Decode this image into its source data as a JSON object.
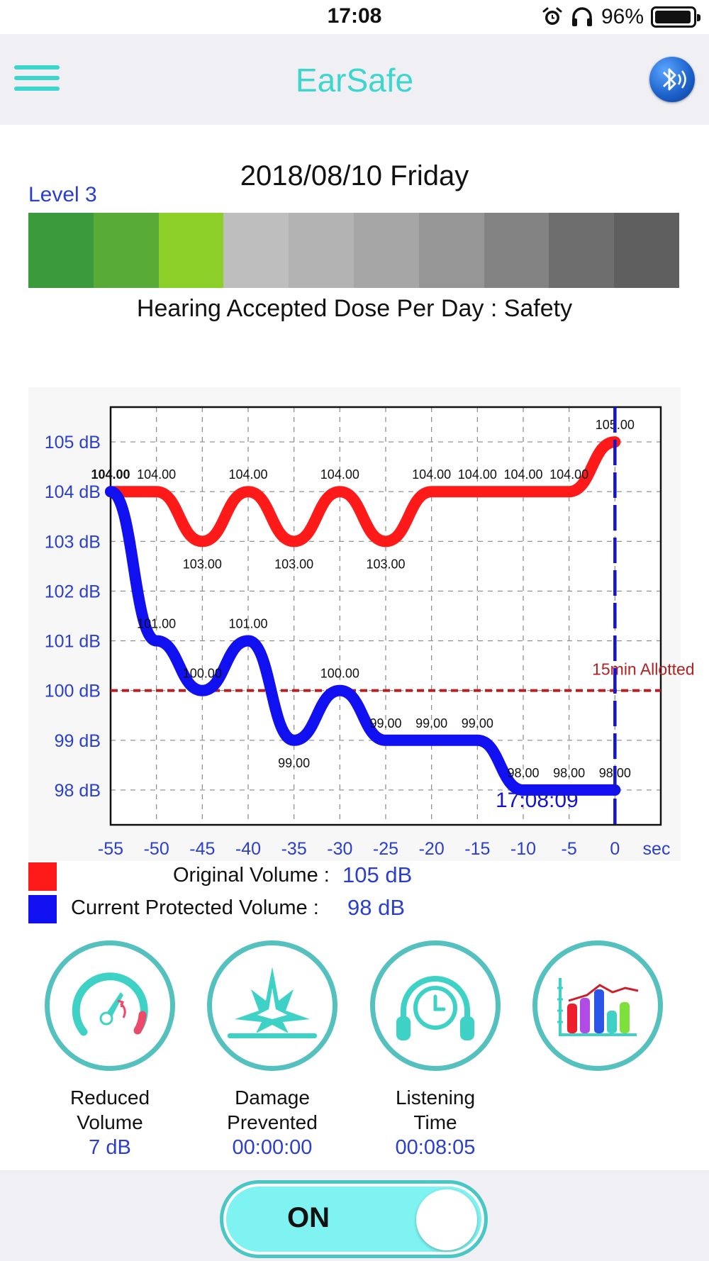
{
  "status_bar": {
    "time": "17:08",
    "battery": "96%",
    "battery_level": 0.96
  },
  "nav": {
    "title": "EarSafe",
    "menu_icon": "hamburger-menu-icon",
    "bluetooth_icon": "bluetooth-audio-icon"
  },
  "header": {
    "date": "2018/08/10 Friday",
    "level": "Level 3",
    "dose_text": "Hearing Accepted Dose Per Day : Safety"
  },
  "level_bar": {
    "selected_level": 3,
    "colors": [
      "#3a9a3c",
      "#58ab37",
      "#8ccf28",
      "#bebebe",
      "#b3b3b3",
      "#a6a6a6",
      "#969696",
      "#838383",
      "#6e6e6e",
      "#5f5f5f"
    ]
  },
  "chart_data": {
    "type": "line",
    "x_unit": "sec",
    "x_ticks": [
      "-55",
      "-50",
      "-45",
      "-40",
      "-35",
      "-30",
      "-25",
      "-20",
      "-15",
      "-10",
      "-5",
      "0",
      "sec"
    ],
    "y_ticks": [
      "98 dB",
      "99 dB",
      "100 dB",
      "101 dB",
      "102 dB",
      "103 dB",
      "104 dB",
      "105 dB"
    ],
    "xlim": [
      -55,
      5
    ],
    "ylim": [
      97.3,
      105.7
    ],
    "grid": true,
    "threshold": {
      "value": 100,
      "label": "15min Allotted",
      "color": "#b22222"
    },
    "current_marker": {
      "x": 0,
      "label": "17:08:09",
      "color": "#1515cc"
    },
    "series": [
      {
        "name": "Original Volume",
        "color": "#ff1a1a",
        "x": [
          -55,
          -50,
          -45,
          -40,
          -35,
          -30,
          -25,
          -20,
          -15,
          -10,
          -5,
          0
        ],
        "values": [
          104,
          104,
          103,
          104,
          103,
          104,
          103,
          104,
          104,
          104,
          104,
          105
        ],
        "labels": [
          "104.00",
          "104.00",
          "103.00",
          "104.00",
          "103.00",
          "104.00",
          "103.00",
          "104.00",
          "104.00",
          "104.00",
          "104.00",
          "105.00"
        ]
      },
      {
        "name": "Current Protected Volume",
        "color": "#1010f0",
        "x": [
          -55,
          -50,
          -45,
          -40,
          -35,
          -30,
          -25,
          -20,
          -15,
          -10,
          -5,
          0
        ],
        "values": [
          104,
          101,
          100,
          101,
          99,
          100,
          99,
          99,
          99,
          98,
          98,
          98
        ],
        "labels": [
          "",
          "101.00",
          "100.00",
          "101.00",
          "99.00",
          "100.00",
          "99.00",
          "99.00",
          "99.00",
          "98.00",
          "98.00",
          "98.00"
        ]
      }
    ]
  },
  "legend": {
    "original": {
      "label": "Original Volume :",
      "value": "105 dB",
      "color": "#ff1a1a"
    },
    "protected": {
      "label": "Current Protected Volume :",
      "value": "98 dB",
      "color": "#1010f0"
    }
  },
  "stats": [
    {
      "line1": "Reduced",
      "line2": "Volume",
      "value": "7 dB",
      "icon": "speedometer-icon"
    },
    {
      "line1": "Damage",
      "line2": "Prevented",
      "value": "00:00:00",
      "icon": "explosion-icon"
    },
    {
      "line1": "Listening",
      "line2": "Time",
      "value": "00:08:05",
      "icon": "headphones-clock-icon"
    },
    {
      "line1": "",
      "line2": "",
      "value": "",
      "icon": "statistics-chart-icon"
    }
  ],
  "toggle": {
    "label": "ON",
    "state": true
  }
}
